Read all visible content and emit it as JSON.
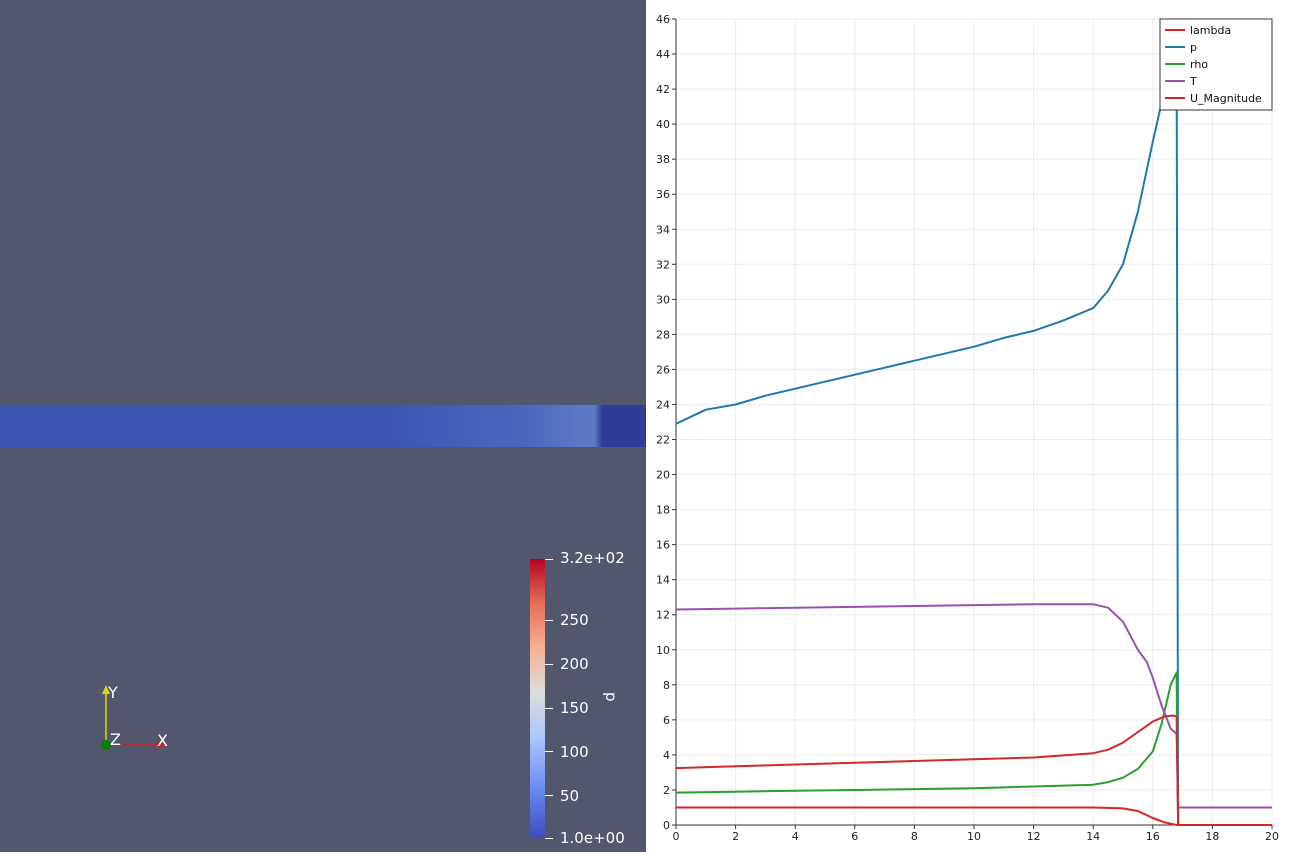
{
  "render_view": {
    "colorbar": {
      "title": "p",
      "max_label": "3.2e+02",
      "min_label": "1.0e+00",
      "tick_labels": [
        "250",
        "200",
        "150",
        "100",
        "50"
      ]
    },
    "axes_labels": {
      "x": "X",
      "y": "Y",
      "z": "Z"
    },
    "colors": {
      "background": "#52576e",
      "bar": "#3c55b4",
      "bar_end": "#2f3d96"
    }
  },
  "chart_data": {
    "type": "line",
    "x_ticks": [
      "0",
      "2",
      "4",
      "6",
      "8",
      "10",
      "12",
      "14",
      "16",
      "18",
      "20"
    ],
    "y_ticks": [
      "0",
      "2",
      "4",
      "6",
      "8",
      "10",
      "12",
      "14",
      "16",
      "18",
      "20",
      "22",
      "24",
      "26",
      "28",
      "30",
      "32",
      "34",
      "36",
      "38",
      "40",
      "42",
      "44",
      "46"
    ],
    "xlim": [
      0,
      20
    ],
    "ylim": [
      0,
      46
    ],
    "grid": true,
    "legend_position": "top-right",
    "series": [
      {
        "name": "lambda",
        "color": "#d62728",
        "x": [
          0,
          2,
          6,
          10,
          14,
          15.0,
          15.5,
          16.0,
          16.4,
          16.8,
          16.8,
          18,
          20
        ],
        "y": [
          1.0,
          1.0,
          1.0,
          1.0,
          1.0,
          0.95,
          0.8,
          0.4,
          0.15,
          0.0,
          0.0,
          0.0,
          0.0
        ]
      },
      {
        "name": "p",
        "color": "#1f77b4",
        "x": [
          0,
          1,
          2,
          3,
          4,
          5,
          6,
          7,
          8,
          9,
          10,
          11,
          12,
          13,
          14,
          14.5,
          15.0,
          15.5,
          16.0,
          16.4,
          16.7,
          16.8,
          16.85,
          18,
          20
        ],
        "y": [
          22.9,
          23.7,
          24.0,
          24.5,
          24.9,
          25.3,
          25.7,
          26.1,
          26.5,
          26.9,
          27.3,
          27.8,
          28.2,
          28.8,
          29.5,
          30.5,
          32.0,
          35.0,
          39.0,
          42.0,
          45.0,
          45.5,
          0.0,
          0.0,
          0.0
        ]
      },
      {
        "name": "rho",
        "color": "#2ca02c",
        "x": [
          0,
          2,
          4,
          6,
          8,
          10,
          12,
          14,
          14.5,
          15.0,
          15.5,
          16.0,
          16.3,
          16.6,
          16.8,
          16.85,
          18,
          20
        ],
        "y": [
          1.85,
          1.9,
          1.95,
          2.0,
          2.05,
          2.1,
          2.2,
          2.3,
          2.45,
          2.7,
          3.2,
          4.2,
          5.8,
          8.0,
          8.7,
          0.0,
          0.0,
          0.0
        ]
      },
      {
        "name": "T",
        "color": "#9b4fb0",
        "x": [
          0,
          2,
          4,
          6,
          8,
          10,
          12,
          13,
          14,
          14.5,
          15.0,
          15.5,
          15.8,
          16.0,
          16.3,
          16.6,
          16.8,
          16.85,
          18,
          20
        ],
        "y": [
          12.3,
          12.35,
          12.4,
          12.45,
          12.5,
          12.55,
          12.6,
          12.6,
          12.6,
          12.4,
          11.6,
          10.0,
          9.3,
          8.4,
          6.8,
          5.5,
          5.2,
          1.0,
          1.0,
          1.0
        ]
      },
      {
        "name": "U_Magnitude",
        "color": "#d62728",
        "x": [
          0,
          2,
          4,
          6,
          8,
          10,
          12,
          14,
          14.5,
          15.0,
          15.5,
          16.0,
          16.4,
          16.7,
          16.8,
          16.85,
          18,
          20
        ],
        "y": [
          3.25,
          3.35,
          3.45,
          3.55,
          3.65,
          3.75,
          3.85,
          4.1,
          4.3,
          4.7,
          5.3,
          5.9,
          6.2,
          6.25,
          6.2,
          0.0,
          0.0,
          0.0
        ]
      }
    ]
  }
}
